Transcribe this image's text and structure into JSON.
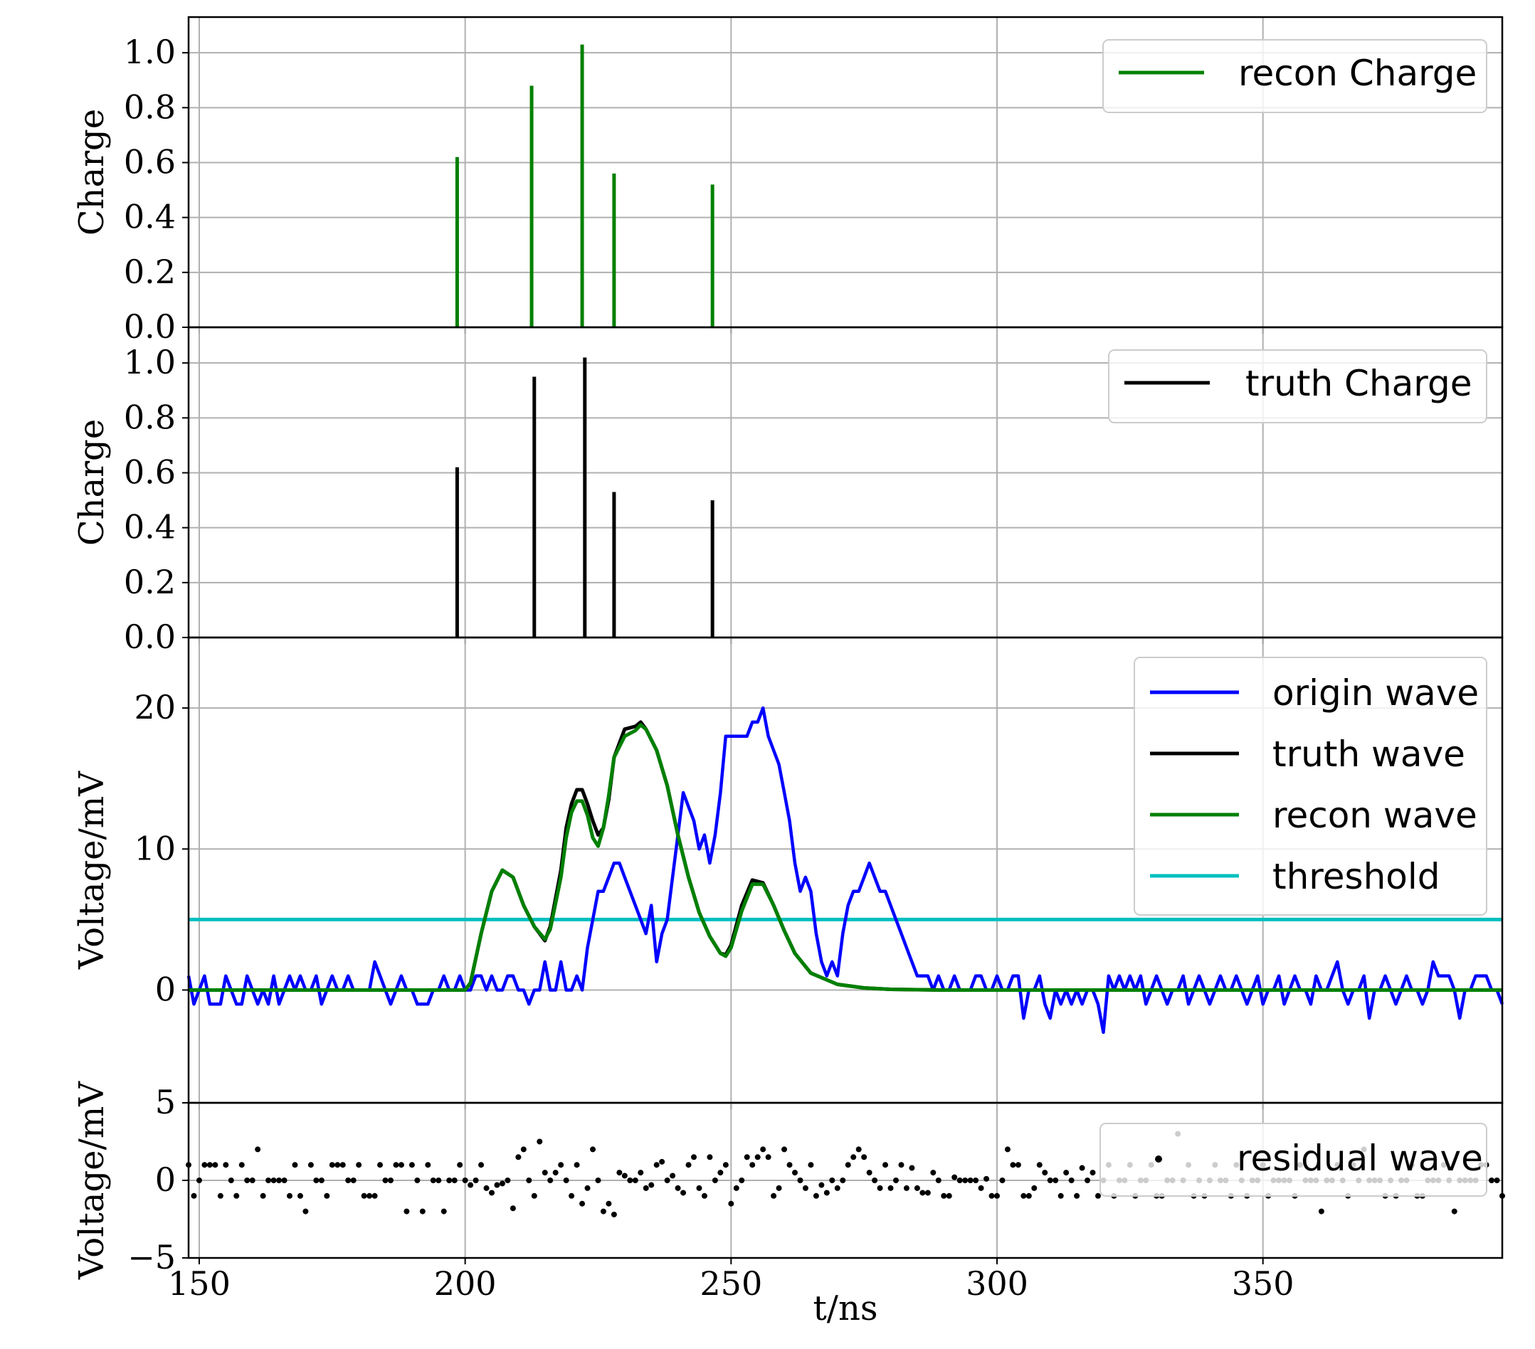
{
  "chart_data": [
    {
      "type": "bar",
      "id": "recon",
      "ylabel": "Charge",
      "ylim": [
        0,
        1.13
      ],
      "yticks": [
        "0.0",
        "0.2",
        "0.4",
        "0.6",
        "0.8",
        "1.0"
      ],
      "ytick_values": [
        0,
        0.2,
        0.4,
        0.6,
        0.8,
        1.0
      ],
      "grid": true,
      "legend": "top-right",
      "series": [
        {
          "name": "recon Charge",
          "color": "#008000",
          "x": [
            198.5,
            212.5,
            222.0,
            228.0,
            246.5
          ],
          "values": [
            0.62,
            0.88,
            1.03,
            0.56,
            0.52
          ]
        }
      ]
    },
    {
      "type": "bar",
      "id": "truth",
      "ylabel": "Charge",
      "ylim": [
        0,
        1.13
      ],
      "yticks": [
        "0.0",
        "0.2",
        "0.4",
        "0.6",
        "0.8",
        "1.0"
      ],
      "ytick_values": [
        0,
        0.2,
        0.4,
        0.6,
        0.8,
        1.0
      ],
      "grid": true,
      "legend": "top-right",
      "series": [
        {
          "name": "truth Charge",
          "color": "#000000",
          "x": [
            198.5,
            213.0,
            222.5,
            228.0,
            246.5
          ],
          "values": [
            0.62,
            0.95,
            1.02,
            0.53,
            0.5
          ]
        }
      ]
    },
    {
      "type": "line",
      "id": "wave",
      "ylabel": "Voltage/mV",
      "ylim": [
        -8,
        25
      ],
      "yticks": [
        "0",
        "10",
        "20"
      ],
      "ytick_values": [
        0,
        10,
        20
      ],
      "grid": true,
      "legend": "top-right",
      "threshold": 5,
      "origin_x_start": 148,
      "origin_x_step": 1,
      "origin_values": [
        1,
        -1,
        0,
        1,
        -1,
        -1,
        -1,
        1,
        0,
        -1,
        -1,
        1,
        0,
        -1,
        0,
        -1,
        1,
        -1,
        0,
        1,
        0,
        1,
        0,
        0,
        1,
        -1,
        0,
        1,
        0,
        0,
        1,
        0,
        0,
        0,
        0,
        2,
        1,
        0,
        -1,
        0,
        1,
        0,
        0,
        -1,
        -1,
        -1,
        0,
        0,
        1,
        0,
        0,
        1,
        0,
        0,
        1,
        1,
        0,
        1,
        0,
        0,
        1,
        1,
        0,
        0,
        -1,
        0,
        0,
        2,
        0,
        0,
        2,
        0,
        0,
        1,
        0,
        3,
        5,
        7,
        7,
        8,
        9,
        9,
        8,
        7,
        6,
        5,
        4,
        6,
        2,
        4,
        5,
        8,
        11,
        14,
        13,
        12,
        10,
        11,
        9,
        11,
        14,
        18,
        18,
        18,
        18,
        18,
        19,
        19,
        20,
        18,
        17,
        16,
        14,
        12,
        9,
        7,
        8,
        7,
        4,
        2,
        1,
        2,
        1,
        4,
        6,
        7,
        7,
        8,
        9,
        8,
        7,
        7,
        6,
        5,
        4,
        3,
        2,
        1,
        1,
        1,
        0,
        1,
        0,
        0,
        1,
        0,
        0,
        0,
        1,
        1,
        0,
        0,
        1,
        0,
        0,
        1,
        1,
        -2,
        0,
        0,
        1,
        -1,
        -2,
        0,
        -1,
        0,
        -1,
        0,
        -1,
        0,
        0,
        -1,
        -3,
        1,
        0,
        1,
        0,
        1,
        0,
        1,
        -1,
        0,
        1,
        0,
        -1,
        0,
        0,
        1,
        -1,
        0,
        1,
        0,
        -1,
        0,
        1,
        0,
        0,
        1,
        0,
        -1,
        0,
        1,
        -1,
        0,
        0,
        1,
        -1,
        0,
        1,
        0,
        0,
        -1,
        1,
        0,
        0,
        1,
        2,
        0,
        -1,
        0,
        0,
        1,
        -2,
        0,
        0,
        1,
        0,
        -1,
        0,
        1,
        0,
        0,
        -1,
        0,
        2,
        1,
        1,
        1,
        0,
        -2,
        0,
        0,
        1,
        1,
        1,
        0,
        0,
        -1,
        0,
        1,
        0,
        1,
        0,
        -1,
        0,
        1,
        0,
        0,
        1,
        -1,
        1,
        1,
        0,
        -1,
        1,
        0
      ],
      "series": [
        {
          "name": "origin wave",
          "color": "#0000ff"
        },
        {
          "name": "truth wave",
          "color": "#000000",
          "x": [
            148,
            200,
            201,
            203,
            205,
            207,
            209,
            211,
            213,
            215,
            216,
            218,
            219,
            220,
            221,
            222,
            223,
            224,
            225,
            226,
            227,
            228,
            230,
            232,
            233,
            234,
            236,
            238,
            240,
            242,
            244,
            246,
            248,
            249,
            250,
            252,
            254,
            256,
            258,
            260,
            262,
            265,
            270,
            275,
            280,
            290,
            300,
            320,
            350,
            395
          ],
          "y": [
            0,
            0,
            0.5,
            4,
            7,
            8.5,
            8,
            6,
            4.5,
            3.5,
            4.5,
            8.5,
            11.5,
            13.2,
            14.2,
            14.2,
            13.2,
            12,
            11,
            11.5,
            13.5,
            16.5,
            18.5,
            18.7,
            19,
            18.5,
            17,
            14.5,
            11,
            8,
            5.5,
            3.8,
            2.6,
            2.5,
            3.2,
            6,
            7.8,
            7.6,
            6,
            4.2,
            2.6,
            1.2,
            0.4,
            0.15,
            0.05,
            0,
            0,
            0,
            0,
            0
          ]
        },
        {
          "name": "recon wave",
          "color": "#008000",
          "x": [
            148,
            200,
            201,
            203,
            205,
            207,
            209,
            211,
            213,
            215,
            216,
            218,
            219,
            220,
            221,
            222,
            223,
            224,
            225,
            226,
            227,
            228,
            230,
            232,
            233,
            234,
            236,
            238,
            240,
            242,
            244,
            246,
            248,
            249,
            250,
            252,
            254,
            256,
            258,
            260,
            262,
            265,
            270,
            275,
            280,
            290,
            300,
            320,
            350,
            395
          ],
          "y": [
            0,
            0,
            0.5,
            4,
            7,
            8.5,
            8,
            6,
            4.5,
            3.6,
            4.3,
            8,
            10.8,
            12.6,
            13.4,
            13.4,
            12.4,
            10.8,
            10.2,
            11.5,
            13.8,
            16.5,
            18,
            18.4,
            18.8,
            18.5,
            17,
            14.5,
            11,
            8,
            5.5,
            3.8,
            2.6,
            2.4,
            3,
            5.6,
            7.5,
            7.5,
            6,
            4.2,
            2.6,
            1.2,
            0.4,
            0.15,
            0.05,
            0,
            0,
            0,
            0,
            0
          ]
        },
        {
          "name": "threshold",
          "color": "#00bfbf"
        }
      ]
    },
    {
      "type": "scatter",
      "id": "residual",
      "ylabel": "Voltage/mV",
      "xlabel": "t/ns",
      "ylim": [
        -5,
        5
      ],
      "yticks": [
        "−5",
        "0",
        "5"
      ],
      "ytick_values": [
        -5,
        0,
        5
      ],
      "xlim": [
        148,
        395
      ],
      "xticks": [
        "150",
        "200",
        "250",
        "300",
        "350"
      ],
      "xtick_values": [
        150,
        200,
        250,
        300,
        350
      ],
      "grid": true,
      "legend": "top-right",
      "series": [
        {
          "name": "residual wave",
          "color": "#000000",
          "x_start": 148,
          "x_step": 1,
          "values": [
            1,
            -1,
            0,
            1,
            1,
            1,
            -1,
            1,
            0,
            -1,
            1,
            0,
            0,
            2,
            -1,
            0,
            0,
            0,
            0,
            -1,
            1,
            -1,
            -2,
            1,
            0,
            0,
            -1,
            1,
            1,
            1,
            0,
            0,
            1,
            -1,
            -1,
            -1,
            1,
            0,
            0,
            1,
            1,
            -2,
            1,
            0,
            -2,
            1,
            0,
            0,
            -2,
            0,
            0,
            1,
            0,
            -0.3,
            0,
            1,
            -0.5,
            -0.8,
            -0.3,
            -0.2,
            0,
            -1.8,
            1.5,
            2,
            0,
            -1,
            2.5,
            0.5,
            0,
            0.5,
            1,
            0,
            -1,
            1,
            -1.5,
            -0.5,
            2,
            0,
            -2,
            -1.5,
            -2.2,
            0.5,
            0.3,
            0,
            0,
            0.5,
            -0.5,
            -0.3,
            1,
            1.2,
            0,
            0.3,
            -0.5,
            -0.8,
            1,
            1.5,
            -0.5,
            -1,
            1.5,
            0,
            0.5,
            1,
            -1.5,
            -0.5,
            0,
            1.5,
            1,
            1.5,
            2,
            1.5,
            -1,
            -0.5,
            2,
            1,
            0.5,
            0,
            -0.5,
            1,
            -1,
            -0.3,
            -0.8,
            0,
            -0.5,
            0,
            1,
            1.5,
            2,
            1.5,
            0.5,
            0,
            -0.5,
            1,
            -0.5,
            0,
            1,
            -0.5,
            0.8,
            -0.5,
            -0.8,
            -0.8,
            0.5,
            0,
            -1,
            -1,
            0.2,
            0,
            0,
            0,
            0,
            -0.5,
            0.1,
            -1,
            -1,
            0,
            2,
            1,
            1,
            -1,
            -1,
            -0.5,
            1,
            0.5,
            0,
            0,
            -1,
            0.5,
            0,
            -1,
            0.8,
            0,
            0.5,
            -1,
            0,
            1,
            -1,
            0,
            0,
            1,
            -1,
            0,
            0,
            1,
            -1,
            -1,
            0,
            0,
            3,
            0,
            1,
            -1,
            0,
            -1,
            0,
            1,
            0,
            0,
            -1,
            1,
            0,
            -1,
            0,
            0,
            1,
            -1,
            0,
            0,
            0,
            0,
            -1,
            1,
            0,
            0,
            0,
            -2,
            0,
            0,
            1,
            0,
            -1,
            1,
            0,
            2,
            0,
            0,
            0,
            -1,
            0,
            -1,
            0,
            0,
            1,
            -1,
            -1,
            0,
            0,
            0,
            1,
            0,
            -2,
            0,
            0,
            0,
            0,
            1,
            1,
            0,
            0,
            -1,
            0,
            1,
            0,
            0,
            -1,
            0,
            0,
            1,
            0,
            -1,
            0,
            0,
            1,
            0,
            0,
            -1,
            -1
          ]
        }
      ]
    }
  ]
}
